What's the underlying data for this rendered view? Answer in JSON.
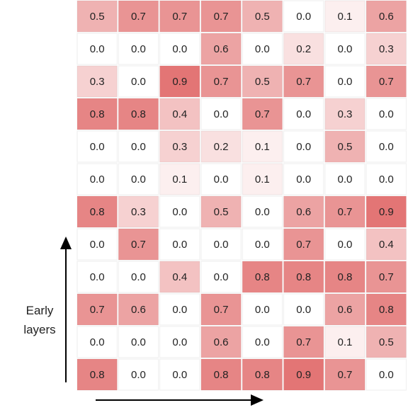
{
  "chart_data": {
    "type": "heatmap",
    "color": "#e06666",
    "y_axis_label": "Early layers",
    "values": [
      [
        0.5,
        0.7,
        0.7,
        0.7,
        0.5,
        0.0,
        0.1,
        0.6
      ],
      [
        0.0,
        0.0,
        0.0,
        0.6,
        0.0,
        0.2,
        0.0,
        0.3
      ],
      [
        0.3,
        0.0,
        0.9,
        0.7,
        0.5,
        0.7,
        0.0,
        0.7
      ],
      [
        0.8,
        0.8,
        0.4,
        0.0,
        0.7,
        0.0,
        0.3,
        0.0
      ],
      [
        0.0,
        0.0,
        0.3,
        0.2,
        0.1,
        0.0,
        0.5,
        0.0
      ],
      [
        0.0,
        0.0,
        0.1,
        0.0,
        0.1,
        0.0,
        0.0,
        0.0
      ],
      [
        0.8,
        0.3,
        0.0,
        0.5,
        0.0,
        0.6,
        0.7,
        0.9
      ],
      [
        0.0,
        0.7,
        0.0,
        0.0,
        0.0,
        0.7,
        0.0,
        0.4
      ],
      [
        0.0,
        0.0,
        0.4,
        0.0,
        0.8,
        0.8,
        0.8,
        0.7
      ],
      [
        0.7,
        0.6,
        0.0,
        0.7,
        0.0,
        0.0,
        0.6,
        0.8
      ],
      [
        0.0,
        0.0,
        0.0,
        0.6,
        0.0,
        0.7,
        0.1,
        0.5
      ],
      [
        0.8,
        0.0,
        0.0,
        0.8,
        0.8,
        0.9,
        0.7,
        0.0
      ]
    ],
    "value_labels": [
      [
        "0.5",
        "0.7",
        "0.7",
        "0.7",
        "0.5",
        "0.0",
        "0.1",
        "0.6"
      ],
      [
        "0.0",
        "0.0",
        "0.0",
        "0.6",
        "0.0",
        "0.2",
        "0.0",
        "0.3"
      ],
      [
        "0.3",
        "0.0",
        "0.9",
        "0.7",
        "0.5",
        "0.7",
        "0.0",
        "0.7"
      ],
      [
        "0.8",
        "0.8",
        "0.4",
        "0.0",
        "0.7",
        "0.0",
        "0.3",
        "0.0"
      ],
      [
        "0.0",
        "0.0",
        "0.3",
        "0.2",
        "0.1",
        "0.0",
        "0.5",
        "0.0"
      ],
      [
        "0.0",
        "0.0",
        "0.1",
        "0.0",
        "0.1",
        "0.0",
        "0.0",
        "0.0"
      ],
      [
        "0.8",
        "0.3",
        "0.0",
        "0.5",
        "0.0",
        "0.6",
        "0.7",
        "0.9"
      ],
      [
        "0.0",
        "0.7",
        "0.0",
        "0.0",
        "0.0",
        "0.7",
        "0.0",
        "0.4"
      ],
      [
        "0.0",
        "0.0",
        "0.4",
        "0.0",
        "0.8",
        "0.8",
        "0.8",
        "0.7"
      ],
      [
        "0.7",
        "0.6",
        "0.0",
        "0.7",
        "0.0",
        "0.0",
        "0.6",
        "0.8"
      ],
      [
        "0.0",
        "0.0",
        "0.0",
        "0.6",
        "0.0",
        "0.7",
        "0.1",
        "0.5"
      ],
      [
        "0.8",
        "0.0",
        "0.0",
        "0.8",
        "0.8",
        "0.9",
        "0.7",
        "0.0"
      ]
    ]
  }
}
